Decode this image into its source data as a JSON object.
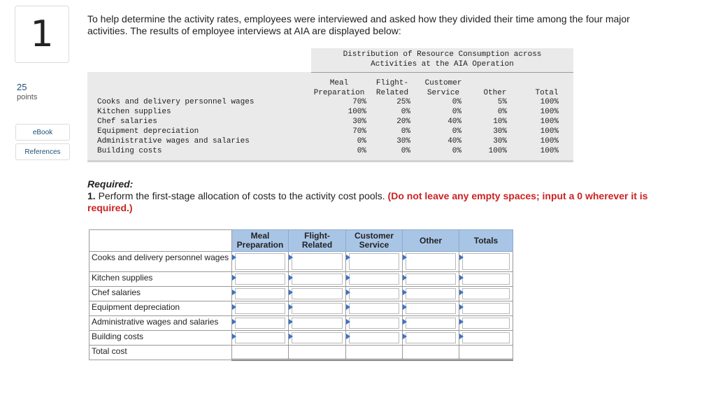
{
  "question_number": "1",
  "points": {
    "value": "25",
    "label": "points"
  },
  "sidebar": {
    "ebook": "eBook",
    "references": "References"
  },
  "intro_text": "To help determine the activity rates, employees were interviewed and asked how they divided their time among the four major activities. The results of employee interviews at AIA are displayed below:",
  "distribution": {
    "title_line1": "Distribution of Resource Consumption across",
    "title_line2": "Activities at the AIA Operation",
    "headers": [
      {
        "line1": "Meal",
        "line2": "Preparation"
      },
      {
        "line1": "Flight-",
        "line2": "Related"
      },
      {
        "line1": "Customer",
        "line2": "Service"
      },
      {
        "line1": "",
        "line2": "Other"
      },
      {
        "line1": "",
        "line2": "Total"
      }
    ],
    "rows": [
      {
        "label": "Cooks and delivery personnel wages",
        "values": [
          "70%",
          "25%",
          "0%",
          "5%",
          "100%"
        ]
      },
      {
        "label": "Kitchen supplies",
        "values": [
          "100%",
          "0%",
          "0%",
          "0%",
          "100%"
        ]
      },
      {
        "label": "Chef salaries",
        "values": [
          "30%",
          "20%",
          "40%",
          "10%",
          "100%"
        ]
      },
      {
        "label": "Equipment depreciation",
        "values": [
          "70%",
          "0%",
          "0%",
          "30%",
          "100%"
        ]
      },
      {
        "label": "Administrative wages and salaries",
        "values": [
          "0%",
          "30%",
          "40%",
          "30%",
          "100%"
        ]
      },
      {
        "label": "Building costs",
        "values": [
          "0%",
          "0%",
          "0%",
          "100%",
          "100%"
        ]
      }
    ]
  },
  "required": {
    "heading": "Required:",
    "number": "1.",
    "text": "Perform the first-stage allocation of costs to the activity cost pools.",
    "note": "(Do not leave any empty spaces; input a 0 wherever it is required.)"
  },
  "answer_table": {
    "headers": [
      {
        "line1": "Meal",
        "line2": "Preparation"
      },
      {
        "line1": "Flight-",
        "line2": "Related"
      },
      {
        "line1": "Customer",
        "line2": "Service"
      },
      {
        "line1": "Other",
        "line2": ""
      },
      {
        "line1": "Totals",
        "line2": ""
      }
    ],
    "rows": [
      {
        "label": "Cooks and delivery personnel wages",
        "values": [
          "",
          "",
          "",
          "",
          ""
        ]
      },
      {
        "label": "Kitchen supplies",
        "values": [
          "",
          "",
          "",
          "",
          ""
        ]
      },
      {
        "label": "Chef salaries",
        "values": [
          "",
          "",
          "",
          "",
          ""
        ]
      },
      {
        "label": "Equipment depreciation",
        "values": [
          "",
          "",
          "",
          "",
          ""
        ]
      },
      {
        "label": "Administrative wages and salaries",
        "values": [
          "",
          "",
          "",
          "",
          ""
        ]
      },
      {
        "label": "Building costs",
        "values": [
          "",
          "",
          "",
          "",
          ""
        ]
      }
    ],
    "total_label": "Total cost"
  },
  "colors": {
    "header_blue": "#a9c5e6",
    "required_red": "#cc2222",
    "link_blue": "#1b4f7a",
    "arrow_blue": "#3b73c4"
  }
}
